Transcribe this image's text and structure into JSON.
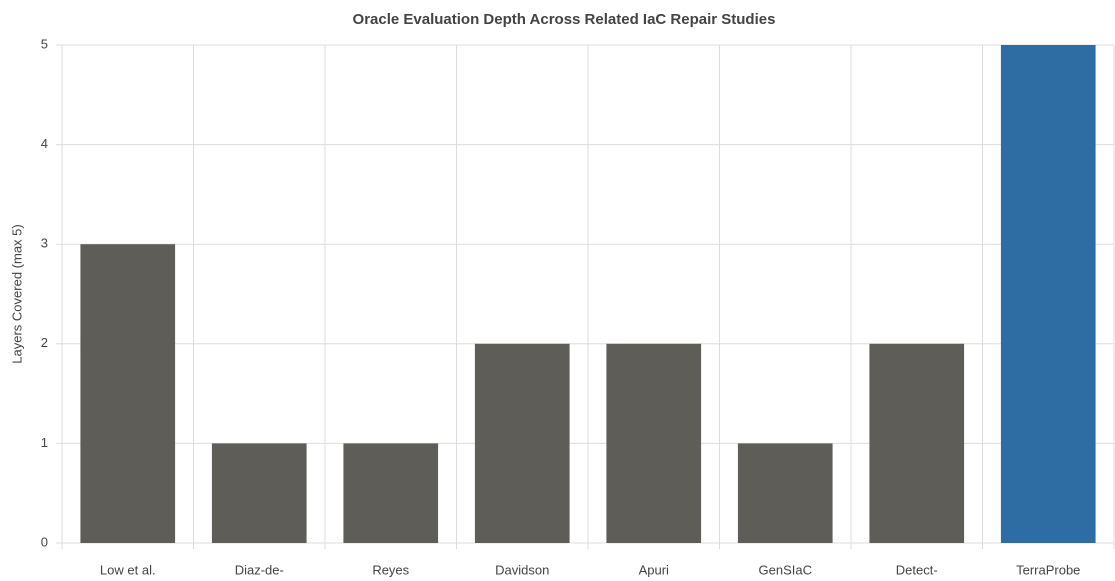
{
  "chart_data": {
    "type": "bar",
    "title": "Oracle Evaluation Depth Across Related IaC Repair Studies",
    "y_label": "Layers Covered (max 5)",
    "categories": [
      "Low et al.",
      "Diaz-de-",
      "Reyes",
      "Davidson",
      "Apuri",
      "GenSIaC",
      "Detect-",
      "TerraProbe"
    ],
    "values": [
      3,
      1,
      1,
      2,
      2,
      1,
      2,
      5
    ],
    "colors": [
      "#5e5d58",
      "#5e5d58",
      "#5e5d58",
      "#5e5d58",
      "#5e5d58",
      "#5e5d58",
      "#5e5d58",
      "#2e6da4"
    ],
    "ylim": [
      0,
      5
    ],
    "yticks": [
      0,
      1,
      2,
      3,
      4,
      5
    ],
    "grid": true
  }
}
